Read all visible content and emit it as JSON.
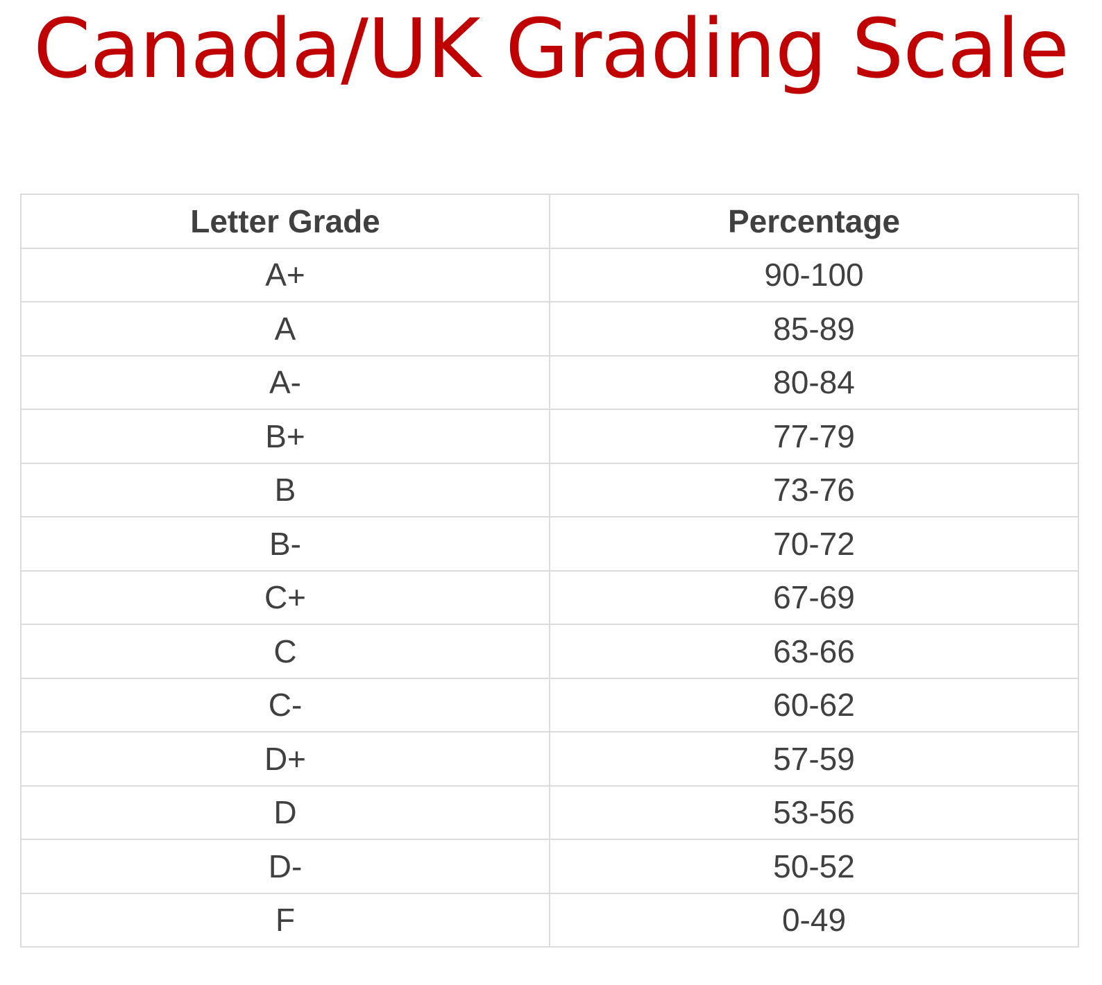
{
  "title": "Canada/UK Grading Scale",
  "table": {
    "headers": [
      "Letter Grade",
      "Percentage"
    ],
    "rows": [
      {
        "grade": "A+",
        "percentage": "90-100"
      },
      {
        "grade": "A",
        "percentage": "85-89"
      },
      {
        "grade": "A-",
        "percentage": "80-84"
      },
      {
        "grade": "B+",
        "percentage": "77-79"
      },
      {
        "grade": "B",
        "percentage": "73-76"
      },
      {
        "grade": "B-",
        "percentage": "70-72"
      },
      {
        "grade": "C+",
        "percentage": "67-69"
      },
      {
        "grade": "C",
        "percentage": "63-66"
      },
      {
        "grade": "C-",
        "percentage": "60-62"
      },
      {
        "grade": "D+",
        "percentage": "57-59"
      },
      {
        "grade": "D",
        "percentage": "53-56"
      },
      {
        "grade": "D-",
        "percentage": "50-52"
      },
      {
        "grade": "F",
        "percentage": "0-49"
      }
    ]
  },
  "colors": {
    "title": "#c00000",
    "text": "#404040",
    "border": "#dcdcdc"
  }
}
